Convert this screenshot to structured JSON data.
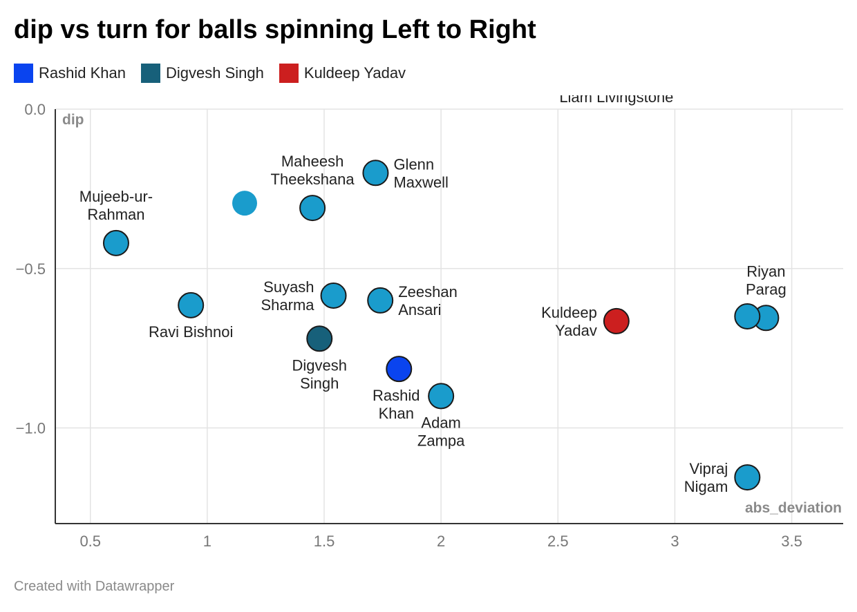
{
  "title": "dip vs turn for balls spinning Left to Right",
  "legend": [
    {
      "label": "Rashid Khan",
      "color": "#0a44ef"
    },
    {
      "label": "Digvesh Singh",
      "color": "#17607a"
    },
    {
      "label": "Kuldeep Yadav",
      "color": "#cc1f1f"
    }
  ],
  "footer": "Created with Datawrapper",
  "chart_data": {
    "type": "scatter",
    "title": "dip vs turn for balls spinning Left to Right",
    "xlabel": "abs_deviation",
    "ylabel": "dip",
    "xlim": [
      0.35,
      3.72
    ],
    "ylim": [
      -1.3,
      0.0
    ],
    "xticks": [
      {
        "value": 0.5,
        "label": "0.5"
      },
      {
        "value": 1,
        "label": "1"
      },
      {
        "value": 1.5,
        "label": "1.5"
      },
      {
        "value": 2,
        "label": "2"
      },
      {
        "value": 2.5,
        "label": "2.5"
      },
      {
        "value": 3,
        "label": "3"
      },
      {
        "value": 3.5,
        "label": "3.5"
      }
    ],
    "yticks": [
      {
        "value": 0,
        "label": "0.0"
      },
      {
        "value": -0.5,
        "label": "−0.5"
      },
      {
        "value": -1,
        "label": "−1.0"
      }
    ],
    "default_color": "#1a9ccc",
    "points": [
      {
        "name": "Mujeeb-ur-Rahman",
        "label": [
          "Mujeeb-ur-",
          "Rahman"
        ],
        "x": 0.61,
        "y": -0.42,
        "label_pos": "above"
      },
      {
        "name": "Unlabeled point",
        "label": [],
        "x": 1.16,
        "y": -0.295,
        "label_pos": "none",
        "outline": false
      },
      {
        "name": "Maheesh Theekshana",
        "label": [
          "Maheesh",
          "Theekshana"
        ],
        "x": 1.45,
        "y": -0.31,
        "label_pos": "above"
      },
      {
        "name": "Glenn Maxwell",
        "label": [
          "Glenn",
          "Maxwell"
        ],
        "x": 1.72,
        "y": -0.2,
        "label_pos": "right"
      },
      {
        "name": "Ravi Bishnoi",
        "label": [
          "Ravi Bishnoi"
        ],
        "x": 0.93,
        "y": -0.615,
        "label_pos": "below"
      },
      {
        "name": "Suyash Sharma",
        "label": [
          "Suyash",
          "Sharma"
        ],
        "x": 1.54,
        "y": -0.585,
        "label_pos": "left"
      },
      {
        "name": "Zeeshan Ansari",
        "label": [
          "Zeeshan",
          "Ansari"
        ],
        "x": 1.74,
        "y": -0.6,
        "label_pos": "right"
      },
      {
        "name": "Digvesh Singh",
        "label": [
          "Digvesh",
          "Singh"
        ],
        "x": 1.48,
        "y": -0.72,
        "label_pos": "below",
        "color": "#17607a"
      },
      {
        "name": "Rashid Khan",
        "label": [
          "Rashid",
          "Khan"
        ],
        "x": 1.82,
        "y": -0.815,
        "label_pos": "below-left",
        "color": "#0a44ef"
      },
      {
        "name": "Adam Zampa",
        "label": [
          "Adam",
          "Zampa"
        ],
        "x": 2.0,
        "y": -0.9,
        "label_pos": "below"
      },
      {
        "name": "Kuldeep Yadav",
        "label": [
          "Kuldeep",
          "Yadav"
        ],
        "x": 2.75,
        "y": -0.665,
        "label_pos": "left",
        "color": "#cc1f1f"
      },
      {
        "name": "Riyan Parag",
        "label": [
          "Riyan",
          "Parag"
        ],
        "x": 3.39,
        "y": -0.655,
        "label_pos": "above"
      },
      {
        "name": "Riyan Parag 2",
        "label": [],
        "x": 3.31,
        "y": -0.65,
        "label_pos": "none"
      },
      {
        "name": "Vipraj Nigam",
        "label": [
          "Vipraj",
          "Nigam"
        ],
        "x": 3.31,
        "y": -1.155,
        "label_pos": "left"
      },
      {
        "name": "Liam Livingstone",
        "label": [
          "Liam Livingstone"
        ],
        "x": 2.75,
        "y": 0.06,
        "label_pos": "offchart"
      }
    ]
  }
}
